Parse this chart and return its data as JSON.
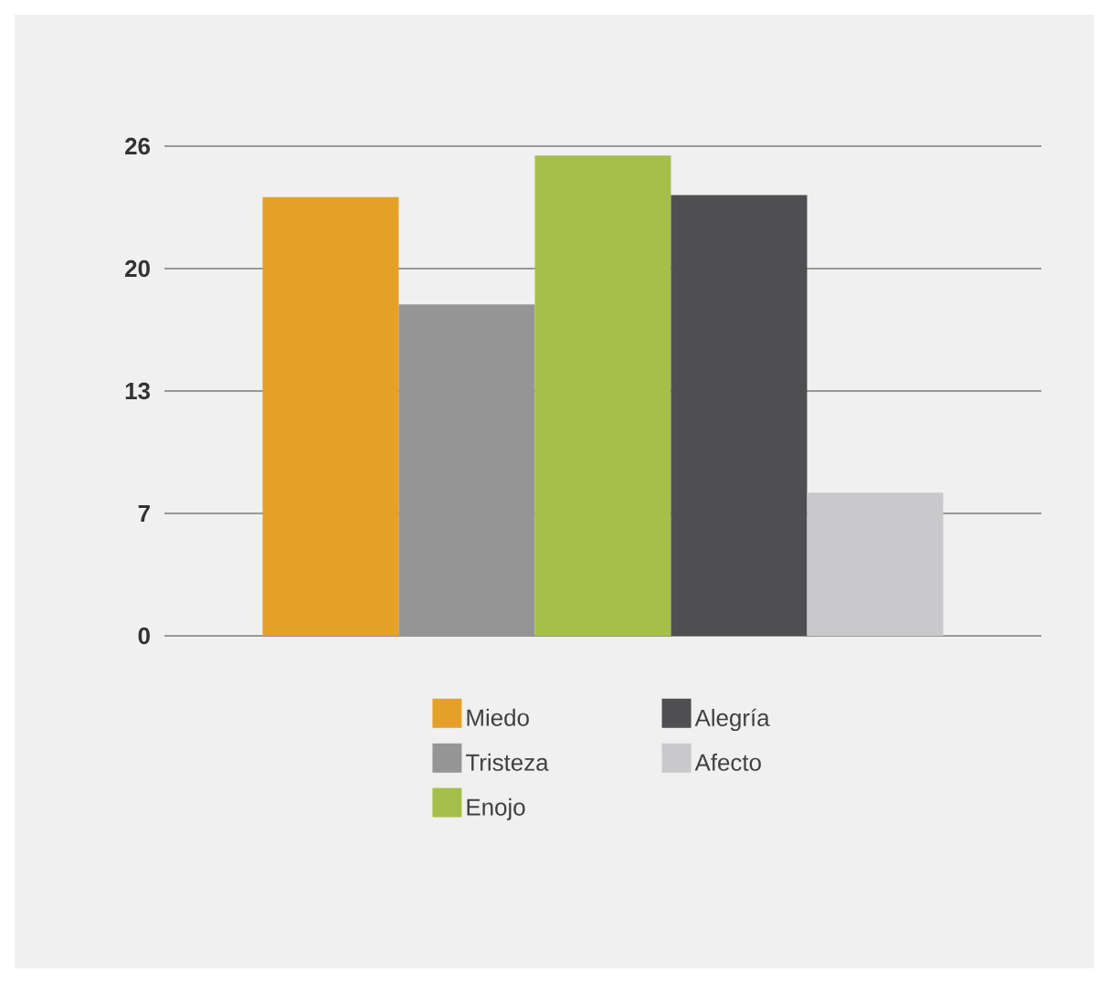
{
  "chart_data": {
    "type": "bar",
    "categories": [
      null
    ],
    "series": [
      {
        "name": "Miedo",
        "color": "#e5a028",
        "values": [
          23.3
        ]
      },
      {
        "name": "Tristeza",
        "color": "#959595",
        "values": [
          17.6
        ]
      },
      {
        "name": "Enojo",
        "color": "#a5c04a",
        "values": [
          25.5
        ]
      },
      {
        "name": "Alegría",
        "color": "#4f4f51",
        "values": [
          23.4
        ]
      },
      {
        "name": "Afecto",
        "color": "#c9c9cb",
        "values": [
          7.6
        ]
      }
    ],
    "ylim": [
      0,
      26
    ],
    "yticks": [
      0,
      {
        "value": 6.5,
        "label": "7"
      },
      13,
      {
        "value": 19.5,
        "label": "20"
      },
      26
    ],
    "grid": "y",
    "legend": "bottom",
    "tick_labels": "y"
  }
}
